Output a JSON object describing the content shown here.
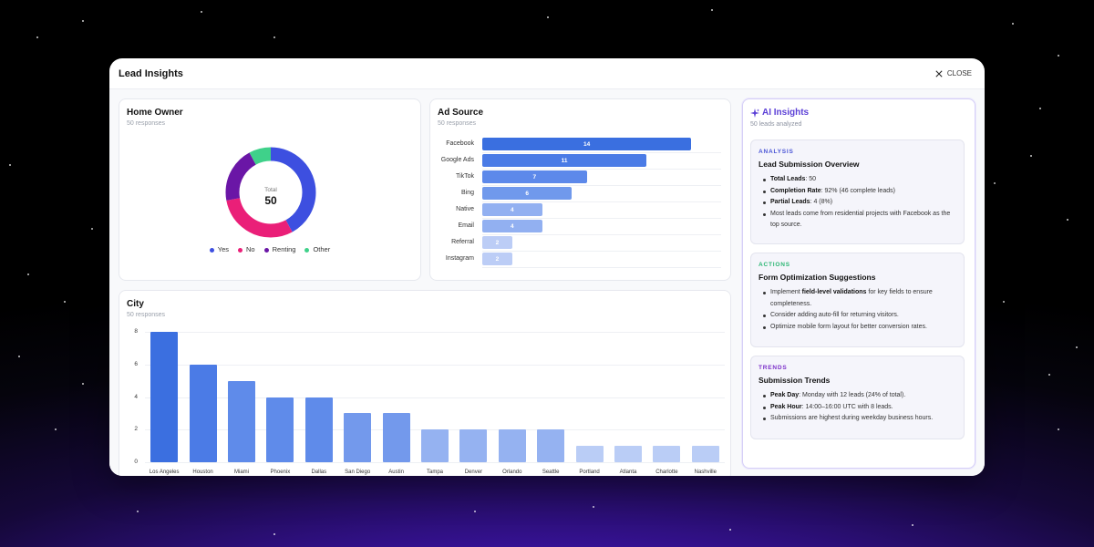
{
  "modal": {
    "title": "Lead Insights",
    "close_label": "CLOSE"
  },
  "home_owner": {
    "title": "Home Owner",
    "subtitle": "50 responses",
    "total_label": "Total",
    "total_value": "50",
    "legend": [
      {
        "label": "Yes",
        "color": "#3d4fe0"
      },
      {
        "label": "No",
        "color": "#ea1f78"
      },
      {
        "label": "Renting",
        "color": "#6a16a6"
      },
      {
        "label": "Other",
        "color": "#3fd18a"
      }
    ],
    "chart_data": {
      "type": "pie",
      "categories": [
        "Yes",
        "No",
        "Renting",
        "Other"
      ],
      "values": [
        21,
        15,
        10,
        4
      ]
    }
  },
  "ad_source": {
    "title": "Ad Source",
    "subtitle": "50 responses",
    "chart_data": {
      "type": "bar",
      "orientation": "horizontal",
      "categories": [
        "Facebook",
        "Google Ads",
        "TikTok",
        "Bing",
        "Native",
        "Email",
        "Referral",
        "Instagram"
      ],
      "values": [
        14,
        11,
        7,
        6,
        4,
        4,
        2,
        2
      ],
      "labels": [
        "14",
        "11",
        "7",
        "6",
        "4",
        "4",
        "2",
        "2"
      ],
      "xlim": [
        0,
        16
      ]
    }
  },
  "city": {
    "title": "City",
    "subtitle": "50 responses",
    "chart_data": {
      "type": "bar",
      "categories": [
        "Los Angeles",
        "Houston",
        "Miami",
        "Phoenix",
        "Dallas",
        "San Diego",
        "Austin",
        "Tampa",
        "Denver",
        "Orlando",
        "Seattle",
        "Portland",
        "Atlanta",
        "Charlotte",
        "Nashville"
      ],
      "values": [
        8,
        6,
        5,
        4,
        4,
        3,
        3,
        2,
        2,
        2,
        2,
        1,
        1,
        1,
        1
      ],
      "ylim": [
        0,
        8
      ],
      "yticks": [
        "0",
        "2",
        "4",
        "6",
        "8"
      ]
    }
  },
  "ai": {
    "title": "AI Insights",
    "subtitle": "50 leads analyzed",
    "sections": [
      {
        "tag": "ANALYSIS",
        "tag_color": "#4a55d6",
        "heading": "Lead Submission Overview",
        "items": [
          {
            "bold": "Total Leads",
            "text": ": 50"
          },
          {
            "bold": "Completion Rate",
            "text": ": 92% (46 complete leads)"
          },
          {
            "bold": "Partial Leads",
            "text": ": 4 (8%)"
          },
          {
            "bold": "",
            "text": "Most leads come from residential projects with Facebook as the top source."
          }
        ]
      },
      {
        "tag": "ACTIONS",
        "tag_color": "#2bb673",
        "heading": "Form Optimization Suggestions",
        "items": [
          {
            "pre": "Implement ",
            "bold": "field-level validations",
            "text": " for key fields to ensure completeness."
          },
          {
            "bold": "",
            "text": "Consider adding auto-fill for returning visitors."
          },
          {
            "bold": "",
            "text": "Optimize mobile form layout for better conversion rates."
          }
        ]
      },
      {
        "tag": "TRENDS",
        "tag_color": "#7b2fc9",
        "heading": "Submission Trends",
        "items": [
          {
            "bold": "Peak Day",
            "text": ": Monday with 12 leads (24% of total)."
          },
          {
            "bold": "Peak Hour",
            "text": ": 14:00–16:00 UTC with 8 leads."
          },
          {
            "bold": "",
            "text": "Submissions are highest during weekday business hours."
          }
        ]
      }
    ]
  }
}
